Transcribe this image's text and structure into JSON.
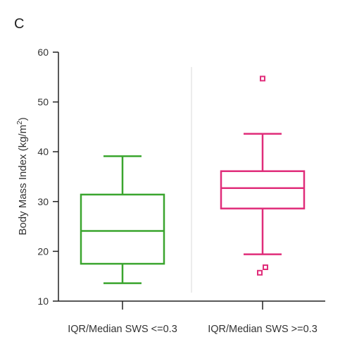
{
  "chart_data": {
    "type": "box",
    "panel_label": "C",
    "ylabel_main": "Body Mass Index (kg/m",
    "ylabel_sup": "2",
    "ylabel_close": ")",
    "ylim": [
      10,
      60
    ],
    "yticks": [
      10,
      20,
      30,
      40,
      50,
      60
    ],
    "grid": false,
    "categories": [
      "IQR/Median SWS <=0.3",
      "IQR/Median SWS >=0.3"
    ],
    "series": [
      {
        "category": "IQR/Median SWS <=0.3",
        "color": "#3aa52e",
        "whisker_low": 13.6,
        "q1": 17.5,
        "median": 24.1,
        "q3": 31.4,
        "whisker_high": 39.1,
        "outliers": []
      },
      {
        "category": "IQR/Median SWS >=0.3",
        "color": "#e02d7a",
        "whisker_low": 19.4,
        "q1": 28.6,
        "median": 32.7,
        "q3": 36.1,
        "whisker_high": 43.6,
        "outliers": [
          54.7,
          16.8,
          15.7
        ]
      }
    ],
    "divider_color": "#d9d9d9",
    "axis_color": "#222222"
  }
}
